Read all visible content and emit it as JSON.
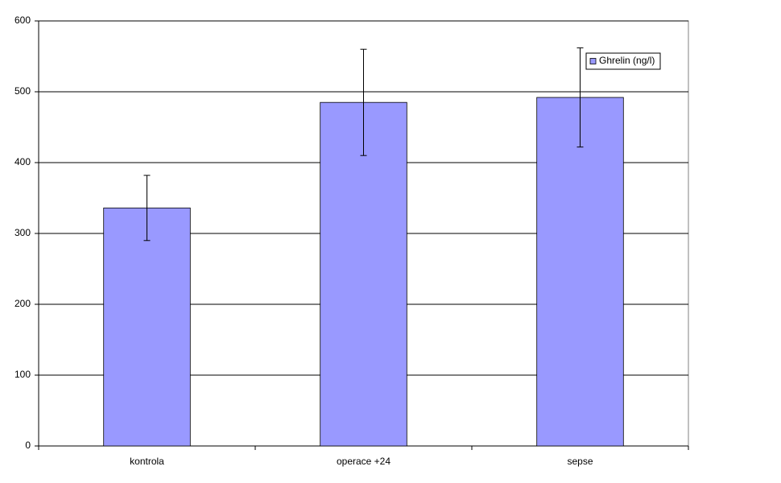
{
  "chart_data": {
    "type": "bar",
    "categories": [
      "kontrola",
      "operace +24",
      "sepse"
    ],
    "series": [
      {
        "name": "Ghrelin (ng/l)",
        "color": "#9999ff",
        "values": [
          336,
          485,
          492
        ],
        "errors": [
          46,
          75,
          70
        ]
      }
    ],
    "ylim": [
      0,
      600
    ],
    "yticks": [
      0,
      100,
      200,
      300,
      400,
      500,
      600
    ],
    "grid": true,
    "legend": "upper right"
  }
}
